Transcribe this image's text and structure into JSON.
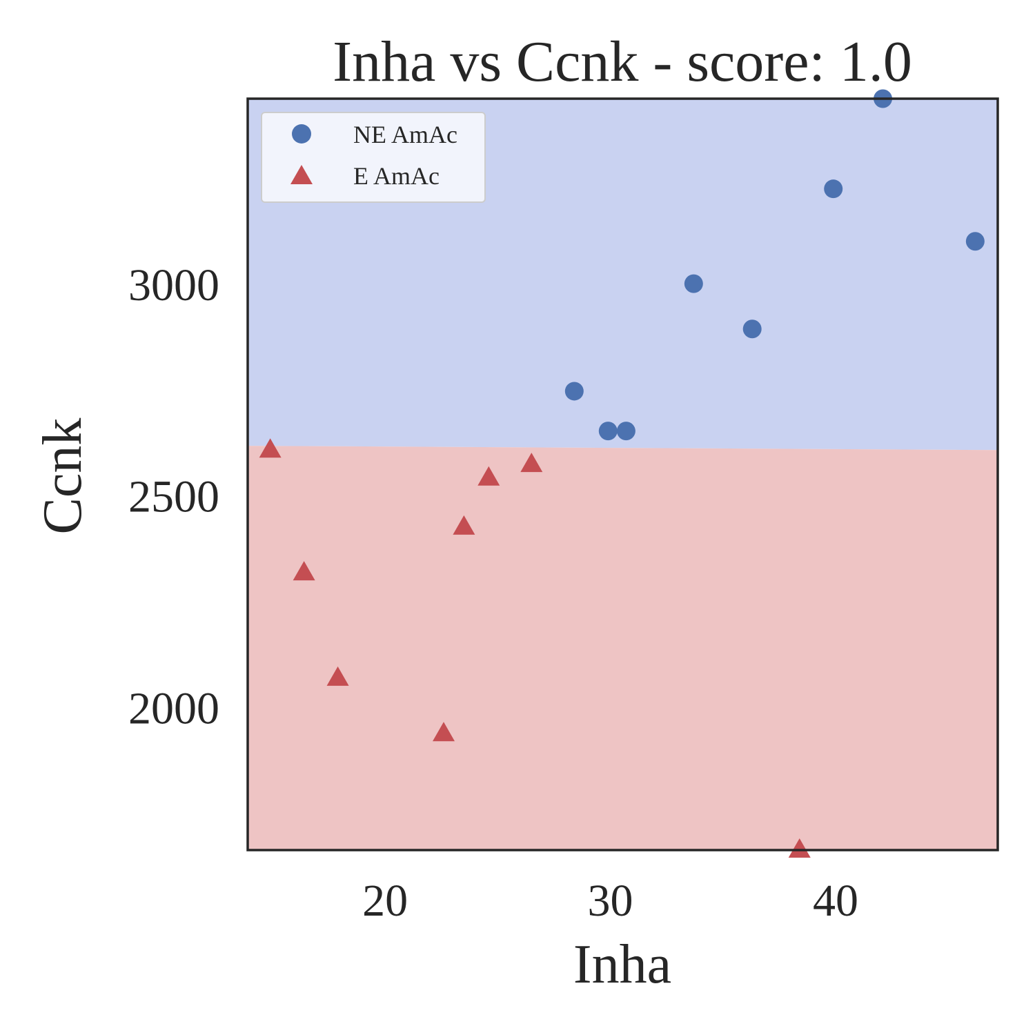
{
  "chart_data": {
    "type": "scatter",
    "title": "Inha vs Ccnk - score: 1.0",
    "xlabel": "Inha",
    "ylabel": "Ccnk",
    "xlim": [
      13.9,
      47.2
    ],
    "ylim": [
      1665,
      3440
    ],
    "xticks": [
      20,
      30,
      40
    ],
    "yticks": [
      2000,
      2500,
      3000
    ],
    "grid": false,
    "legend_position": "top-left",
    "boundary": [
      [
        13.9,
        2620
      ],
      [
        47.2,
        2610
      ]
    ],
    "regions": [
      {
        "name": "NE AmAc",
        "color": "#c9d2f1",
        "side": "above"
      },
      {
        "name": "E AmAc",
        "color": "#eec4c4",
        "side": "below"
      }
    ],
    "series": [
      {
        "name": "NE AmAc",
        "marker": "circle",
        "color": "#4c72b0",
        "points": [
          [
            42.1,
            3440
          ],
          [
            39.9,
            3227
          ],
          [
            46.2,
            3103
          ],
          [
            33.7,
            3003
          ],
          [
            36.3,
            2896
          ],
          [
            28.4,
            2749
          ],
          [
            29.9,
            2655
          ],
          [
            30.7,
            2655
          ]
        ]
      },
      {
        "name": "E AmAc",
        "marker": "triangle",
        "color": "#c44e52",
        "points": [
          [
            14.9,
            2610
          ],
          [
            26.5,
            2576
          ],
          [
            24.6,
            2544
          ],
          [
            23.5,
            2428
          ],
          [
            16.4,
            2320
          ],
          [
            17.9,
            2071
          ],
          [
            22.6,
            1940
          ],
          [
            38.4,
            1665
          ]
        ]
      }
    ]
  }
}
